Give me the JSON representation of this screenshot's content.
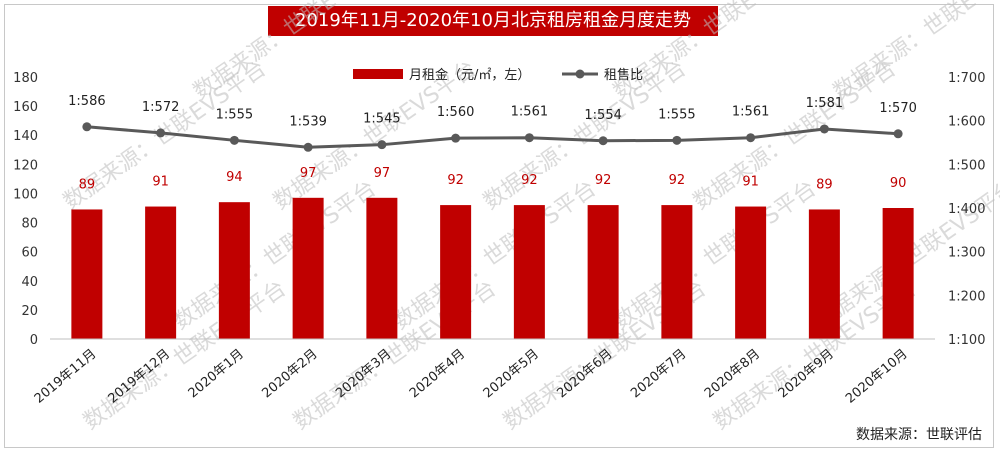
{
  "title": "2019年11月-2020年10月北京租房租金月度走势",
  "source_note": "数据来源：世联评估",
  "watermark": "数据来源：世联EVS平台",
  "colors": {
    "bar": "#c00000",
    "line": "#595959",
    "title_bg": "#c00000"
  },
  "chart_data": {
    "type": "bar",
    "categories": [
      "2019年11月",
      "2019年12月",
      "2020年1月",
      "2020年2月",
      "2020年3月",
      "2020年4月",
      "2020年5月",
      "2020年6月",
      "2020年7月",
      "2020年8月",
      "2020年9月",
      "2020年10月"
    ],
    "series": [
      {
        "name": "月租金（元/㎡，左）",
        "type": "bar",
        "axis": "left",
        "values": [
          89,
          91,
          94,
          97,
          97,
          92,
          92,
          92,
          92,
          91,
          89,
          90
        ]
      },
      {
        "name": "租售比",
        "type": "line",
        "axis": "right",
        "values": [
          586,
          572,
          555,
          539,
          545,
          560,
          561,
          554,
          555,
          561,
          581,
          570
        ],
        "labels": [
          "1:586",
          "1:572",
          "1:555",
          "1:539",
          "1:545",
          "1:560",
          "1:561",
          "1:554",
          "1:555",
          "1:561",
          "1:581",
          "1:570"
        ]
      }
    ],
    "y_left": {
      "ylim": [
        0,
        180
      ],
      "ticks": [
        0,
        20,
        40,
        60,
        80,
        100,
        120,
        140,
        160,
        180
      ]
    },
    "y_right": {
      "ylim": [
        100,
        700
      ],
      "ticks": [
        100,
        200,
        300,
        400,
        500,
        600,
        700
      ],
      "tick_labels": [
        "1:100",
        "1:200",
        "1:300",
        "1:400",
        "1:500",
        "1:600",
        "1:700"
      ]
    },
    "legend_position": "top-center"
  }
}
